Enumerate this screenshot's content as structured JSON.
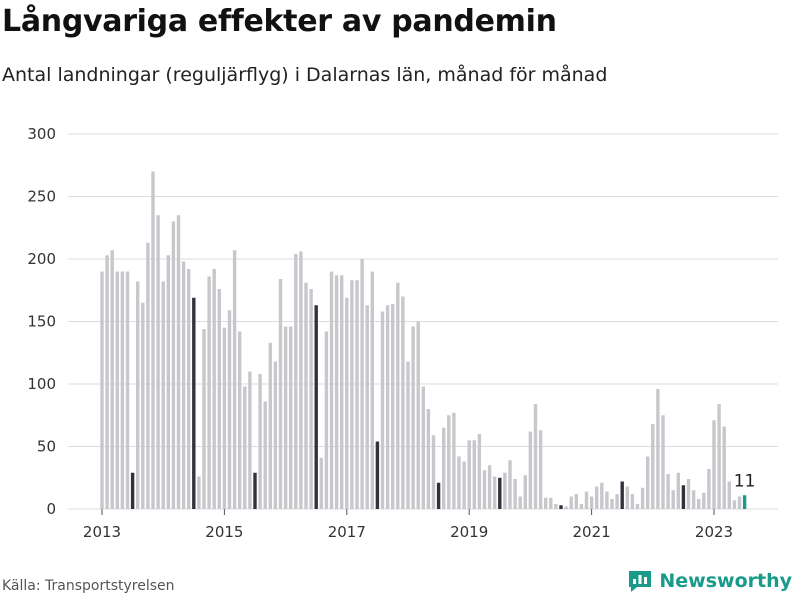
{
  "header": {
    "title": "Långvariga effekter av pandemin",
    "subtitle": "Antal landningar (reguljärflyg) i Dalarnas län, månad för månad"
  },
  "footer": {
    "source": "Källa: Transportstyrelsen",
    "brand": "Newsworthy"
  },
  "colors": {
    "bar": "#c8c8cc",
    "july_bar": "#32323c",
    "latest_bar": "#1a9b8a",
    "grid": "#dcdcdc",
    "brand": "#1a9b8a"
  },
  "chart_data": {
    "type": "bar",
    "title": "Långvariga effekter av pandemin",
    "subtitle": "Antal landningar (reguljärflyg) i Dalarnas län, månad för månad",
    "xlabel": "",
    "ylabel": "",
    "ylim": [
      0,
      300
    ],
    "yticks": [
      0,
      50,
      100,
      150,
      200,
      250,
      300
    ],
    "xticks": [
      "2013",
      "2015",
      "2017",
      "2019",
      "2021",
      "2023"
    ],
    "grid": true,
    "start": "2013-01",
    "end": "2023-07",
    "highlight": "July bars dark; latest month highlighted",
    "latest_label": "11",
    "values": [
      190,
      203,
      207,
      190,
      190,
      190,
      29,
      182,
      165,
      213,
      270,
      235,
      182,
      203,
      230,
      235,
      198,
      192,
      169,
      26,
      144,
      186,
      192,
      176,
      145,
      159,
      207,
      142,
      98,
      110,
      29,
      108,
      86,
      133,
      118,
      184,
      146,
      146,
      204,
      206,
      181,
      176,
      163,
      41,
      142,
      190,
      187,
      187,
      169,
      183,
      183,
      200,
      163,
      190,
      54,
      158,
      163,
      164,
      181,
      170,
      118,
      146,
      150,
      98,
      80,
      59,
      21,
      65,
      75,
      77,
      42,
      38,
      55,
      55,
      60,
      31,
      35,
      26,
      25,
      29,
      39,
      24,
      10,
      27,
      62,
      84,
      63,
      9,
      9,
      4,
      3,
      2,
      10,
      12,
      4,
      14,
      10,
      18,
      21,
      14,
      8,
      12,
      22,
      18,
      12,
      4,
      17,
      42,
      68,
      96,
      75,
      28,
      15,
      29,
      19,
      24,
      15,
      8,
      13,
      32,
      71,
      84,
      66,
      22,
      7,
      10,
      11
    ]
  }
}
